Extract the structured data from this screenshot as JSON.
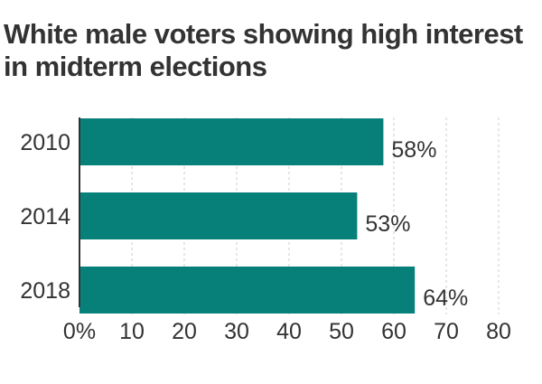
{
  "chart_data": {
    "type": "bar",
    "orientation": "horizontal",
    "title": "White male voters showing high interest in midterm elections",
    "categories": [
      "2010",
      "2014",
      "2018"
    ],
    "values": [
      58,
      53,
      64
    ],
    "value_labels": [
      "58%",
      "53%",
      "64%"
    ],
    "xlim": [
      0,
      80
    ],
    "x_ticks": [
      0,
      10,
      20,
      30,
      40,
      50,
      60,
      70,
      80
    ],
    "x_tick_labels": [
      "0%",
      "10",
      "20",
      "30",
      "40",
      "50",
      "60",
      "70",
      "80"
    ],
    "grid": "vertical dashed",
    "bar_color": "#07807a"
  }
}
